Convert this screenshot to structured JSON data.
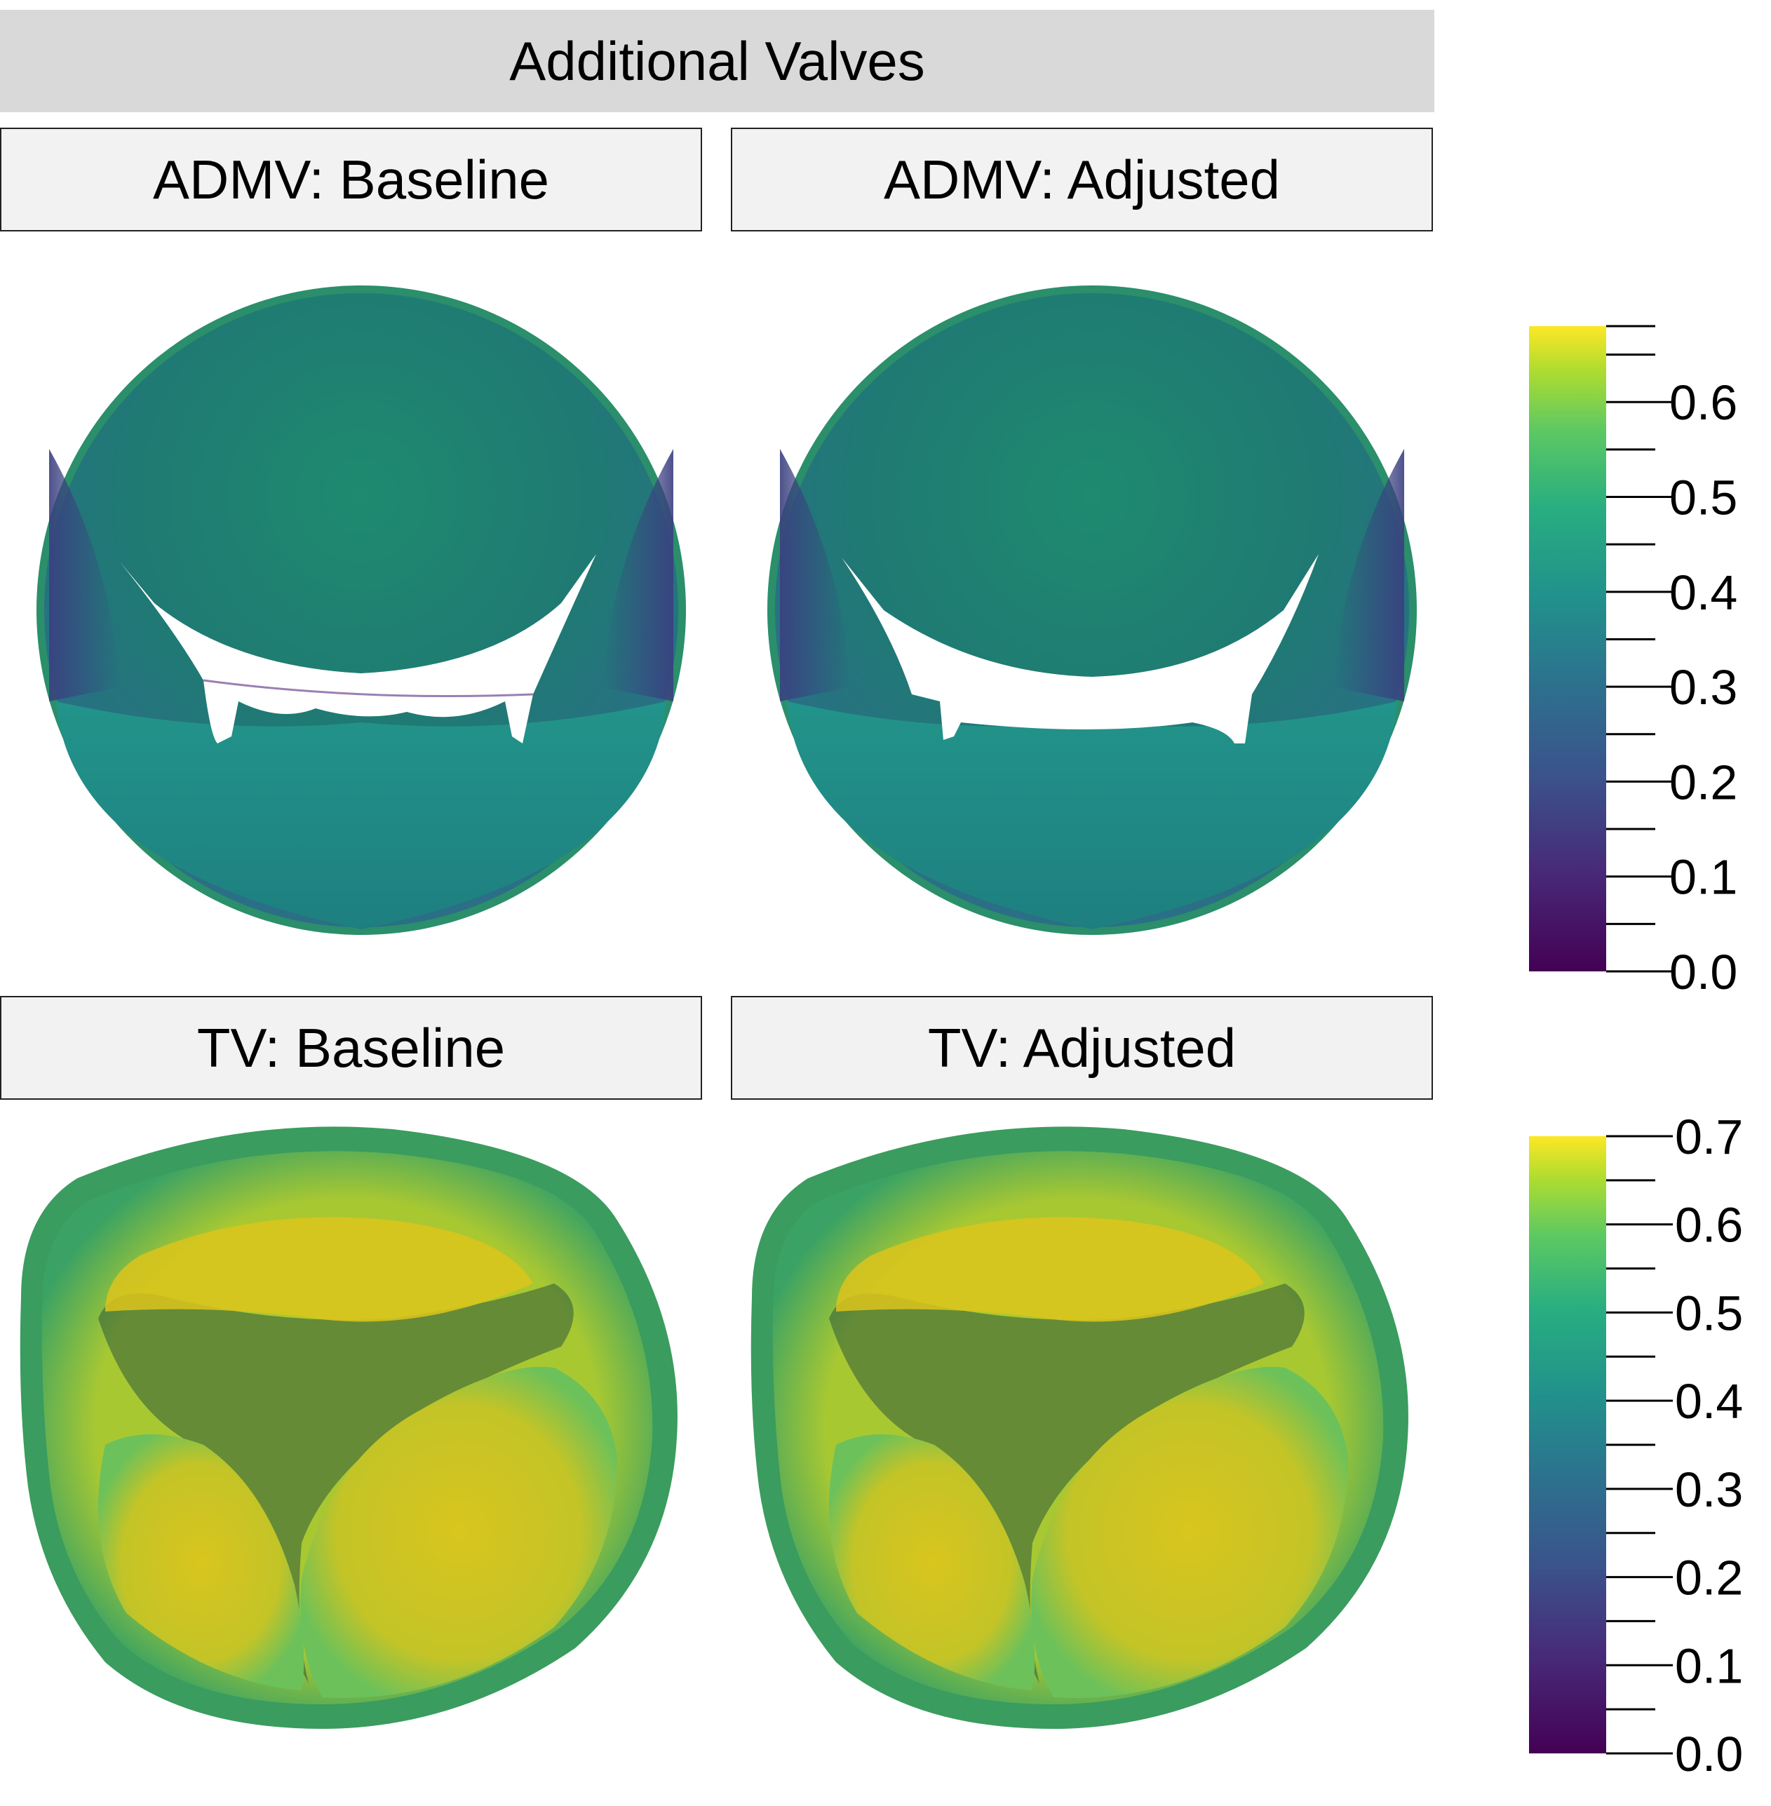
{
  "header": {
    "title": "Additional Valves"
  },
  "panels": {
    "admv_baseline": "ADMV: Baseline",
    "admv_adjusted": "ADMV: Adjusted",
    "tv_baseline": "TV: Baseline",
    "tv_adjusted": "TV: Adjusted"
  },
  "colorbars": [
    {
      "name": "admv",
      "min": 0.0,
      "max": 0.68,
      "ticks": [
        "0.0",
        "0.1",
        "0.2",
        "0.3",
        "0.4",
        "0.5",
        "0.6"
      ]
    },
    {
      "name": "tv",
      "min": 0.0,
      "max": 0.7,
      "ticks": [
        "0.0",
        "0.1",
        "0.2",
        "0.3",
        "0.4",
        "0.5",
        "0.6",
        "0.7"
      ]
    }
  ],
  "colormap": {
    "name": "viridis",
    "stops": [
      "#440154",
      "#3b528b",
      "#21918c",
      "#5ec962",
      "#fde725"
    ]
  }
}
